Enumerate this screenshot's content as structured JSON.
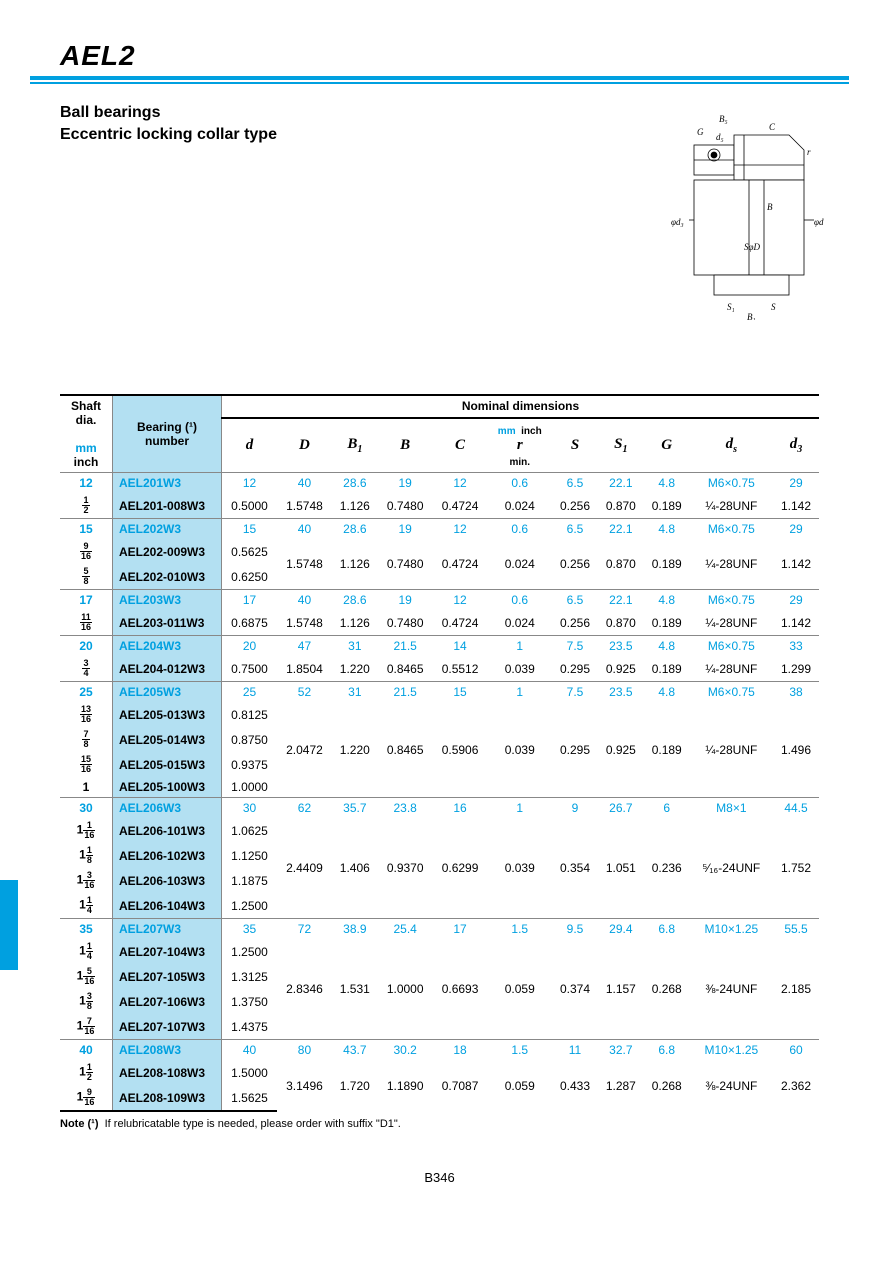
{
  "page": {
    "title": "AEL2",
    "subtitle1": "Ball bearings",
    "subtitle2": "Eccentric locking collar type",
    "note_label": "Note (¹)",
    "note_text": "If relubricatable type is needed, please order with suffix \"D1\".",
    "page_number": "B346"
  },
  "diagram": {
    "labels": [
      "B₅",
      "G",
      "d₅",
      "C",
      "r",
      "φd₃",
      "B",
      "φd",
      "SφD",
      "S₁",
      "S",
      "B₁"
    ]
  },
  "headers": {
    "shaft": "Shaft dia.",
    "bearing_line1": "Bearing (¹)",
    "bearing_line2": "number",
    "nominal": "Nominal dimensions",
    "mm": "mm",
    "inch": "inch",
    "mm_inch": "mm  inch",
    "cols": [
      "d",
      "D",
      "B₁",
      "B",
      "C",
      "r",
      "S",
      "S₁",
      "G",
      "dₛ",
      "d₃"
    ],
    "r_sub": "min."
  },
  "colors": {
    "accent": "#00a0e0",
    "header_bg": "#b3e0f2"
  },
  "groups": [
    {
      "mm": "12",
      "metric": {
        "bearing": "AEL201W3",
        "d": "12",
        "D": "40",
        "B1": "28.6",
        "B": "19",
        "C": "12",
        "r": "0.6",
        "S": "6.5",
        "S1": "22.1",
        "G": "4.8",
        "ds": "M6×0.75",
        "d3": "29"
      },
      "inch_rows": [
        {
          "frac": {
            "n": "1",
            "d": "2"
          },
          "bearing": "AEL201-008W3",
          "d": "0.5000"
        }
      ],
      "inch_dims": {
        "D": "1.5748",
        "B1": "1.126",
        "B": "0.7480",
        "C": "0.4724",
        "r": "0.024",
        "S": "0.256",
        "S1": "0.870",
        "G": "0.189",
        "ds": "¼-28UNF",
        "d3": "1.142"
      }
    },
    {
      "mm": "15",
      "metric": {
        "bearing": "AEL202W3",
        "d": "15",
        "D": "40",
        "B1": "28.6",
        "B": "19",
        "C": "12",
        "r": "0.6",
        "S": "6.5",
        "S1": "22.1",
        "G": "4.8",
        "ds": "M6×0.75",
        "d3": "29"
      },
      "inch_rows": [
        {
          "frac": {
            "n": "9",
            "d": "16"
          },
          "bearing": "AEL202-009W3",
          "d": "0.5625"
        },
        {
          "frac": {
            "n": "5",
            "d": "8"
          },
          "bearing": "AEL202-010W3",
          "d": "0.6250"
        }
      ],
      "inch_dims": {
        "D": "1.5748",
        "B1": "1.126",
        "B": "0.7480",
        "C": "0.4724",
        "r": "0.024",
        "S": "0.256",
        "S1": "0.870",
        "G": "0.189",
        "ds": "¼-28UNF",
        "d3": "1.142"
      }
    },
    {
      "mm": "17",
      "metric": {
        "bearing": "AEL203W3",
        "d": "17",
        "D": "40",
        "B1": "28.6",
        "B": "19",
        "C": "12",
        "r": "0.6",
        "S": "6.5",
        "S1": "22.1",
        "G": "4.8",
        "ds": "M6×0.75",
        "d3": "29"
      },
      "inch_rows": [
        {
          "frac": {
            "n": "11",
            "d": "16"
          },
          "bearing": "AEL203-011W3",
          "d": "0.6875"
        }
      ],
      "inch_dims": {
        "D": "1.5748",
        "B1": "1.126",
        "B": "0.7480",
        "C": "0.4724",
        "r": "0.024",
        "S": "0.256",
        "S1": "0.870",
        "G": "0.189",
        "ds": "¼-28UNF",
        "d3": "1.142"
      }
    },
    {
      "mm": "20",
      "metric": {
        "bearing": "AEL204W3",
        "d": "20",
        "D": "47",
        "B1": "31",
        "B": "21.5",
        "C": "14",
        "r": "1",
        "S": "7.5",
        "S1": "23.5",
        "G": "4.8",
        "ds": "M6×0.75",
        "d3": "33"
      },
      "inch_rows": [
        {
          "frac": {
            "n": "3",
            "d": "4"
          },
          "bearing": "AEL204-012W3",
          "d": "0.7500"
        }
      ],
      "inch_dims": {
        "D": "1.8504",
        "B1": "1.220",
        "B": "0.8465",
        "C": "0.5512",
        "r": "0.039",
        "S": "0.295",
        "S1": "0.925",
        "G": "0.189",
        "ds": "¼-28UNF",
        "d3": "1.299"
      }
    },
    {
      "mm": "25",
      "metric": {
        "bearing": "AEL205W3",
        "d": "25",
        "D": "52",
        "B1": "31",
        "B": "21.5",
        "C": "15",
        "r": "1",
        "S": "7.5",
        "S1": "23.5",
        "G": "4.8",
        "ds": "M6×0.75",
        "d3": "38"
      },
      "inch_rows": [
        {
          "frac": {
            "n": "13",
            "d": "16"
          },
          "bearing": "AEL205-013W3",
          "d": "0.8125"
        },
        {
          "frac": {
            "n": "7",
            "d": "8"
          },
          "bearing": "AEL205-014W3",
          "d": "0.8750"
        },
        {
          "frac": {
            "n": "15",
            "d": "16"
          },
          "bearing": "AEL205-015W3",
          "d": "0.9375"
        },
        {
          "whole": "1",
          "bearing": "AEL205-100W3",
          "d": "1.0000"
        }
      ],
      "inch_dims": {
        "D": "2.0472",
        "B1": "1.220",
        "B": "0.8465",
        "C": "0.5906",
        "r": "0.039",
        "S": "0.295",
        "S1": "0.925",
        "G": "0.189",
        "ds": "¼-28UNF",
        "d3": "1.496"
      }
    },
    {
      "mm": "30",
      "metric": {
        "bearing": "AEL206W3",
        "d": "30",
        "D": "62",
        "B1": "35.7",
        "B": "23.8",
        "C": "16",
        "r": "1",
        "S": "9",
        "S1": "26.7",
        "G": "6",
        "ds": "M8×1",
        "d3": "44.5"
      },
      "inch_rows": [
        {
          "whole": "1",
          "frac": {
            "n": "1",
            "d": "16"
          },
          "bearing": "AEL206-101W3",
          "d": "1.0625"
        },
        {
          "whole": "1",
          "frac": {
            "n": "1",
            "d": "8"
          },
          "bearing": "AEL206-102W3",
          "d": "1.1250"
        },
        {
          "whole": "1",
          "frac": {
            "n": "3",
            "d": "16"
          },
          "bearing": "AEL206-103W3",
          "d": "1.1875"
        },
        {
          "whole": "1",
          "frac": {
            "n": "1",
            "d": "4"
          },
          "bearing": "AEL206-104W3",
          "d": "1.2500"
        }
      ],
      "inch_dims": {
        "D": "2.4409",
        "B1": "1.406",
        "B": "0.9370",
        "C": "0.6299",
        "r": "0.039",
        "S": "0.354",
        "S1": "1.051",
        "G": "0.236",
        "ds": "⁵⁄₁₆-24UNF",
        "d3": "1.752"
      }
    },
    {
      "mm": "35",
      "metric": {
        "bearing": "AEL207W3",
        "d": "35",
        "D": "72",
        "B1": "38.9",
        "B": "25.4",
        "C": "17",
        "r": "1.5",
        "S": "9.5",
        "S1": "29.4",
        "G": "6.8",
        "ds": "M10×1.25",
        "d3": "55.5"
      },
      "inch_rows": [
        {
          "whole": "1",
          "frac": {
            "n": "1",
            "d": "4"
          },
          "bearing": "AEL207-104W3",
          "d": "1.2500"
        },
        {
          "whole": "1",
          "frac": {
            "n": "5",
            "d": "16"
          },
          "bearing": "AEL207-105W3",
          "d": "1.3125"
        },
        {
          "whole": "1",
          "frac": {
            "n": "3",
            "d": "8"
          },
          "bearing": "AEL207-106W3",
          "d": "1.3750"
        },
        {
          "whole": "1",
          "frac": {
            "n": "7",
            "d": "16"
          },
          "bearing": "AEL207-107W3",
          "d": "1.4375"
        }
      ],
      "inch_dims": {
        "D": "2.8346",
        "B1": "1.531",
        "B": "1.0000",
        "C": "0.6693",
        "r": "0.059",
        "S": "0.374",
        "S1": "1.157",
        "G": "0.268",
        "ds": "⅜-24UNF",
        "d3": "2.185"
      }
    },
    {
      "mm": "40",
      "metric": {
        "bearing": "AEL208W3",
        "d": "40",
        "D": "80",
        "B1": "43.7",
        "B": "30.2",
        "C": "18",
        "r": "1.5",
        "S": "11",
        "S1": "32.7",
        "G": "6.8",
        "ds": "M10×1.25",
        "d3": "60"
      },
      "inch_rows": [
        {
          "whole": "1",
          "frac": {
            "n": "1",
            "d": "2"
          },
          "bearing": "AEL208-108W3",
          "d": "1.5000"
        },
        {
          "whole": "1",
          "frac": {
            "n": "9",
            "d": "16"
          },
          "bearing": "AEL208-109W3",
          "d": "1.5625"
        }
      ],
      "inch_dims": {
        "D": "3.1496",
        "B1": "1.720",
        "B": "1.1890",
        "C": "0.7087",
        "r": "0.059",
        "S": "0.433",
        "S1": "1.287",
        "G": "0.268",
        "ds": "⅜-24UNF",
        "d3": "2.362"
      }
    }
  ]
}
